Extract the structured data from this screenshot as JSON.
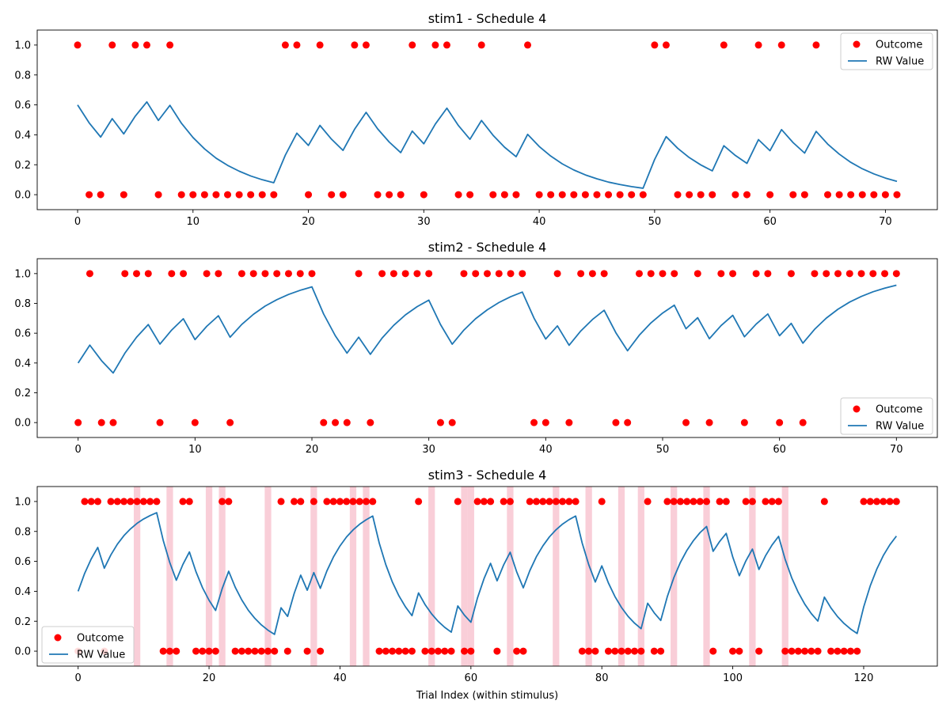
{
  "figure": {
    "xlabel": "Trial Index (within stimulus)"
  },
  "chart_data": [
    {
      "type": "line+scatter",
      "title": "stim1 - Schedule 4",
      "xlabel": "",
      "ylabel": "",
      "xlim": [
        -3.5,
        74.5
      ],
      "ylim": [
        -0.1,
        1.1
      ],
      "xticks": [
        0,
        10,
        20,
        30,
        40,
        50,
        60,
        70
      ],
      "yticks": [
        0.0,
        0.2,
        0.4,
        0.6,
        0.8,
        1.0
      ],
      "legend_position": "upper right",
      "series": [
        {
          "name": "Outcome",
          "kind": "scatter",
          "color": "#ff0000",
          "values": [
            1,
            0,
            0,
            1,
            0,
            1,
            1,
            0,
            1,
            0,
            0,
            0,
            0,
            0,
            0,
            0,
            0,
            0,
            1,
            1,
            0,
            1,
            0,
            0,
            1,
            1,
            0,
            0,
            0,
            1,
            0,
            1,
            1,
            0,
            0,
            1,
            0,
            0,
            0,
            1,
            0,
            0,
            0,
            0,
            0,
            0,
            0,
            0,
            0,
            0,
            1,
            1,
            0,
            0,
            0,
            0,
            1,
            0,
            0,
            1,
            0,
            1,
            0,
            0,
            1,
            0,
            0,
            0,
            0,
            0,
            0,
            0
          ]
        },
        {
          "name": "RW Value",
          "kind": "line",
          "color": "#1f77b4",
          "values": [
            0.6,
            0.48,
            0.385,
            0.508,
            0.406,
            0.525,
            0.62,
            0.496,
            0.597,
            0.477,
            0.382,
            0.306,
            0.244,
            0.196,
            0.157,
            0.125,
            0.1,
            0.08,
            0.264,
            0.411,
            0.329,
            0.463,
            0.371,
            0.296,
            0.437,
            0.55,
            0.44,
            0.352,
            0.281,
            0.425,
            0.34,
            0.472,
            0.578,
            0.462,
            0.37,
            0.496,
            0.397,
            0.317,
            0.254,
            0.403,
            0.322,
            0.258,
            0.206,
            0.165,
            0.132,
            0.106,
            0.084,
            0.068,
            0.054,
            0.043,
            0.235,
            0.388,
            0.31,
            0.248,
            0.199,
            0.159,
            0.327,
            0.262,
            0.209,
            0.368,
            0.294,
            0.435,
            0.348,
            0.278,
            0.423,
            0.338,
            0.271,
            0.216,
            0.173,
            0.139,
            0.111,
            0.089
          ]
        }
      ]
    },
    {
      "type": "line+scatter",
      "title": "stim2 - Schedule 4",
      "xlabel": "",
      "ylabel": "",
      "xlim": [
        -3.5,
        73.5
      ],
      "ylim": [
        -0.1,
        1.1
      ],
      "xticks": [
        0,
        10,
        20,
        30,
        40,
        50,
        60,
        70
      ],
      "yticks": [
        0.0,
        0.2,
        0.4,
        0.6,
        0.8,
        1.0
      ],
      "legend_position": "lower right",
      "series": [
        {
          "name": "Outcome",
          "kind": "scatter",
          "color": "#ff0000",
          "values": [
            0,
            1,
            0,
            0,
            1,
            1,
            1,
            0,
            1,
            1,
            0,
            1,
            1,
            0,
            1,
            1,
            1,
            1,
            1,
            1,
            1,
            0,
            0,
            0,
            1,
            0,
            1,
            1,
            1,
            1,
            1,
            0,
            0,
            1,
            1,
            1,
            1,
            1,
            1,
            0,
            0,
            1,
            0,
            1,
            1,
            1,
            0,
            0,
            1,
            1,
            1,
            1,
            0,
            1,
            0,
            1,
            1,
            0,
            1,
            1,
            0,
            1,
            0,
            1,
            1,
            1,
            1,
            1,
            1,
            1,
            1
          ]
        },
        {
          "name": "RW Value",
          "kind": "line",
          "color": "#1f77b4",
          "values": [
            0.4,
            0.52,
            0.416,
            0.333,
            0.466,
            0.573,
            0.658,
            0.527,
            0.621,
            0.697,
            0.557,
            0.646,
            0.717,
            0.573,
            0.659,
            0.727,
            0.782,
            0.825,
            0.86,
            0.888,
            0.911,
            0.729,
            0.583,
            0.466,
            0.573,
            0.458,
            0.567,
            0.653,
            0.723,
            0.778,
            0.822,
            0.658,
            0.526,
            0.621,
            0.697,
            0.757,
            0.806,
            0.845,
            0.876,
            0.701,
            0.561,
            0.649,
            0.519,
            0.615,
            0.692,
            0.754,
            0.603,
            0.482,
            0.586,
            0.669,
            0.735,
            0.788,
            0.63,
            0.704,
            0.563,
            0.651,
            0.72,
            0.576,
            0.661,
            0.729,
            0.583,
            0.666,
            0.533,
            0.626,
            0.701,
            0.761,
            0.809,
            0.847,
            0.878,
            0.902,
            0.922
          ]
        }
      ]
    },
    {
      "type": "line+scatter",
      "title": "stim3 - Schedule 4",
      "xlabel": "Trial Index (within stimulus)",
      "ylabel": "",
      "xlim": [
        -6.25,
        131.25
      ],
      "ylim": [
        -0.1,
        1.1
      ],
      "xticks": [
        0,
        20,
        40,
        60,
        80,
        100,
        120
      ],
      "yticks": [
        0.0,
        0.2,
        0.4,
        0.6,
        0.8,
        1.0
      ],
      "legend_position": "lower left",
      "shaded_trials": [
        9,
        14,
        20,
        22,
        29,
        36,
        42,
        44,
        54,
        59,
        60,
        66,
        73,
        78,
        83,
        86,
        91,
        96,
        103,
        108
      ],
      "series": [
        {
          "name": "Outcome",
          "kind": "scatter",
          "color": "#ff0000",
          "values": [
            0,
            1,
            1,
            1,
            0,
            1,
            1,
            1,
            1,
            1,
            1,
            1,
            1,
            0,
            0,
            0,
            1,
            1,
            0,
            0,
            0,
            0,
            1,
            1,
            0,
            0,
            0,
            0,
            0,
            0,
            0,
            1,
            0,
            1,
            1,
            0,
            1,
            0,
            1,
            1,
            1,
            1,
            1,
            1,
            1,
            1,
            0,
            0,
            0,
            0,
            0,
            0,
            1,
            0,
            0,
            0,
            0,
            0,
            1,
            0,
            0,
            1,
            1,
            1,
            0,
            1,
            1,
            0,
            0,
            1,
            1,
            1,
            1,
            1,
            1,
            1,
            1,
            0,
            0,
            0,
            1,
            0,
            0,
            0,
            0,
            0,
            0,
            1,
            0,
            0,
            1,
            1,
            1,
            1,
            1,
            1,
            1,
            0,
            1,
            1,
            0,
            0,
            1,
            1,
            0,
            1,
            1,
            1,
            0,
            0,
            0,
            0,
            0,
            0,
            1,
            0,
            0,
            0,
            0,
            0,
            1,
            1,
            1,
            1,
            1,
            1
          ]
        },
        {
          "name": "RW Value",
          "kind": "line",
          "color": "#1f77b4",
          "values": [
            0.4,
            0.52,
            0.616,
            0.693,
            0.554,
            0.643,
            0.715,
            0.772,
            0.817,
            0.854,
            0.883,
            0.906,
            0.925,
            0.74,
            0.592,
            0.474,
            0.579,
            0.663,
            0.531,
            0.424,
            0.34,
            0.272,
            0.417,
            0.534,
            0.427,
            0.342,
            0.273,
            0.219,
            0.175,
            0.14,
            0.112,
            0.29,
            0.232,
            0.385,
            0.508,
            0.407,
            0.525,
            0.42,
            0.536,
            0.629,
            0.703,
            0.763,
            0.81,
            0.848,
            0.878,
            0.903,
            0.722,
            0.578,
            0.462,
            0.37,
            0.296,
            0.237,
            0.389,
            0.311,
            0.249,
            0.199,
            0.159,
            0.127,
            0.302,
            0.241,
            0.193,
            0.355,
            0.484,
            0.587,
            0.47,
            0.576,
            0.661,
            0.529,
            0.423,
            0.538,
            0.631,
            0.704,
            0.764,
            0.811,
            0.849,
            0.879,
            0.903,
            0.722,
            0.578,
            0.462,
            0.57,
            0.456,
            0.365,
            0.292,
            0.233,
            0.187,
            0.15,
            0.32,
            0.256,
            0.205,
            0.364,
            0.491,
            0.593,
            0.674,
            0.739,
            0.792,
            0.833,
            0.667,
            0.733,
            0.787,
            0.629,
            0.504,
            0.603,
            0.682,
            0.546,
            0.637,
            0.709,
            0.767,
            0.614,
            0.491,
            0.393,
            0.314,
            0.251,
            0.201,
            0.361,
            0.289,
            0.231,
            0.185,
            0.148,
            0.118,
            0.295,
            0.436,
            0.548,
            0.639,
            0.711,
            0.769
          ]
        }
      ]
    }
  ]
}
